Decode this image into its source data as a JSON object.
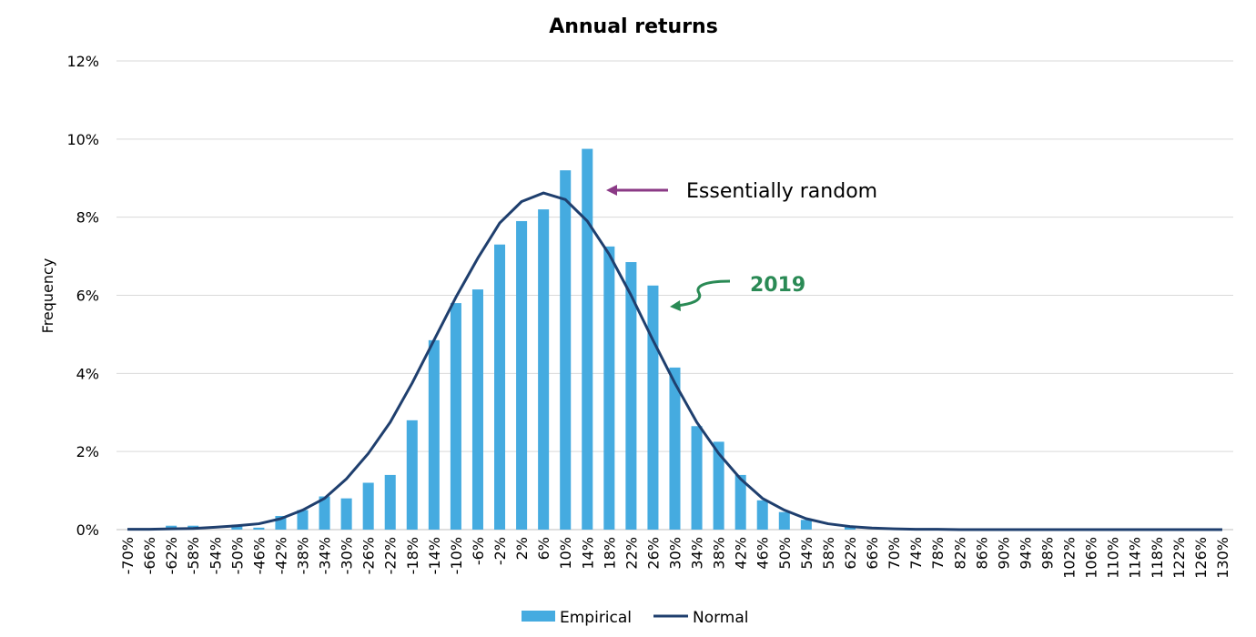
{
  "chart_data": {
    "type": "bar",
    "title": "Annual returns",
    "xlabel": "",
    "ylabel": "Frequency",
    "ylim": [
      0,
      12
    ],
    "ytick_step": 2,
    "y_tick_suffix": "%",
    "grid": true,
    "legend_position": "bottom",
    "categories": [
      "-70%",
      "-66%",
      "-62%",
      "-58%",
      "-54%",
      "-50%",
      "-46%",
      "-42%",
      "-38%",
      "-34%",
      "-30%",
      "-26%",
      "-22%",
      "-18%",
      "-14%",
      "-10%",
      "-6%",
      "-2%",
      "2%",
      "6%",
      "10%",
      "14%",
      "18%",
      "22%",
      "26%",
      "30%",
      "34%",
      "38%",
      "42%",
      "46%",
      "50%",
      "54%",
      "58%",
      "62%",
      "66%",
      "70%",
      "74%",
      "78%",
      "82%",
      "86%",
      "90%",
      "94%",
      "98%",
      "102%",
      "106%",
      "110%",
      "114%",
      "118%",
      "122%",
      "126%",
      "130%"
    ],
    "series": [
      {
        "name": "Empirical",
        "kind": "bar",
        "color": "#45ABE0",
        "values": [
          0,
          0,
          0.1,
          0.1,
          0,
          0.1,
          0.05,
          0.35,
          0.5,
          0.85,
          0.8,
          1.2,
          1.4,
          2.8,
          4.85,
          5.8,
          6.15,
          7.3,
          7.9,
          8.2,
          9.2,
          9.75,
          7.25,
          6.85,
          6.25,
          4.15,
          2.65,
          2.25,
          1.4,
          0.75,
          0.45,
          0.25,
          0,
          0.1,
          0,
          0,
          0,
          0,
          0,
          0,
          0,
          0,
          0,
          0,
          0,
          0,
          0,
          0,
          0,
          0,
          0
        ]
      },
      {
        "name": "Normal",
        "kind": "line",
        "color": "#1F3F6E",
        "values": [
          0.01,
          0.01,
          0.02,
          0.03,
          0.06,
          0.1,
          0.15,
          0.28,
          0.5,
          0.8,
          1.3,
          1.95,
          2.75,
          3.75,
          4.85,
          5.95,
          6.95,
          7.85,
          8.4,
          8.62,
          8.45,
          7.9,
          7.05,
          6.0,
          4.85,
          3.75,
          2.75,
          1.95,
          1.3,
          0.8,
          0.5,
          0.28,
          0.15,
          0.08,
          0.04,
          0.02,
          0.01,
          0.01,
          0,
          0,
          0,
          0,
          0,
          0,
          0,
          0,
          0,
          0,
          0,
          0,
          0
        ]
      }
    ],
    "annotations": [
      {
        "text": "Essentially random",
        "color": "#000000",
        "arrow_color": "#8B3A86"
      },
      {
        "text": "2019",
        "color": "#2A8A55",
        "arrow_color": "#2A8A55"
      }
    ]
  }
}
